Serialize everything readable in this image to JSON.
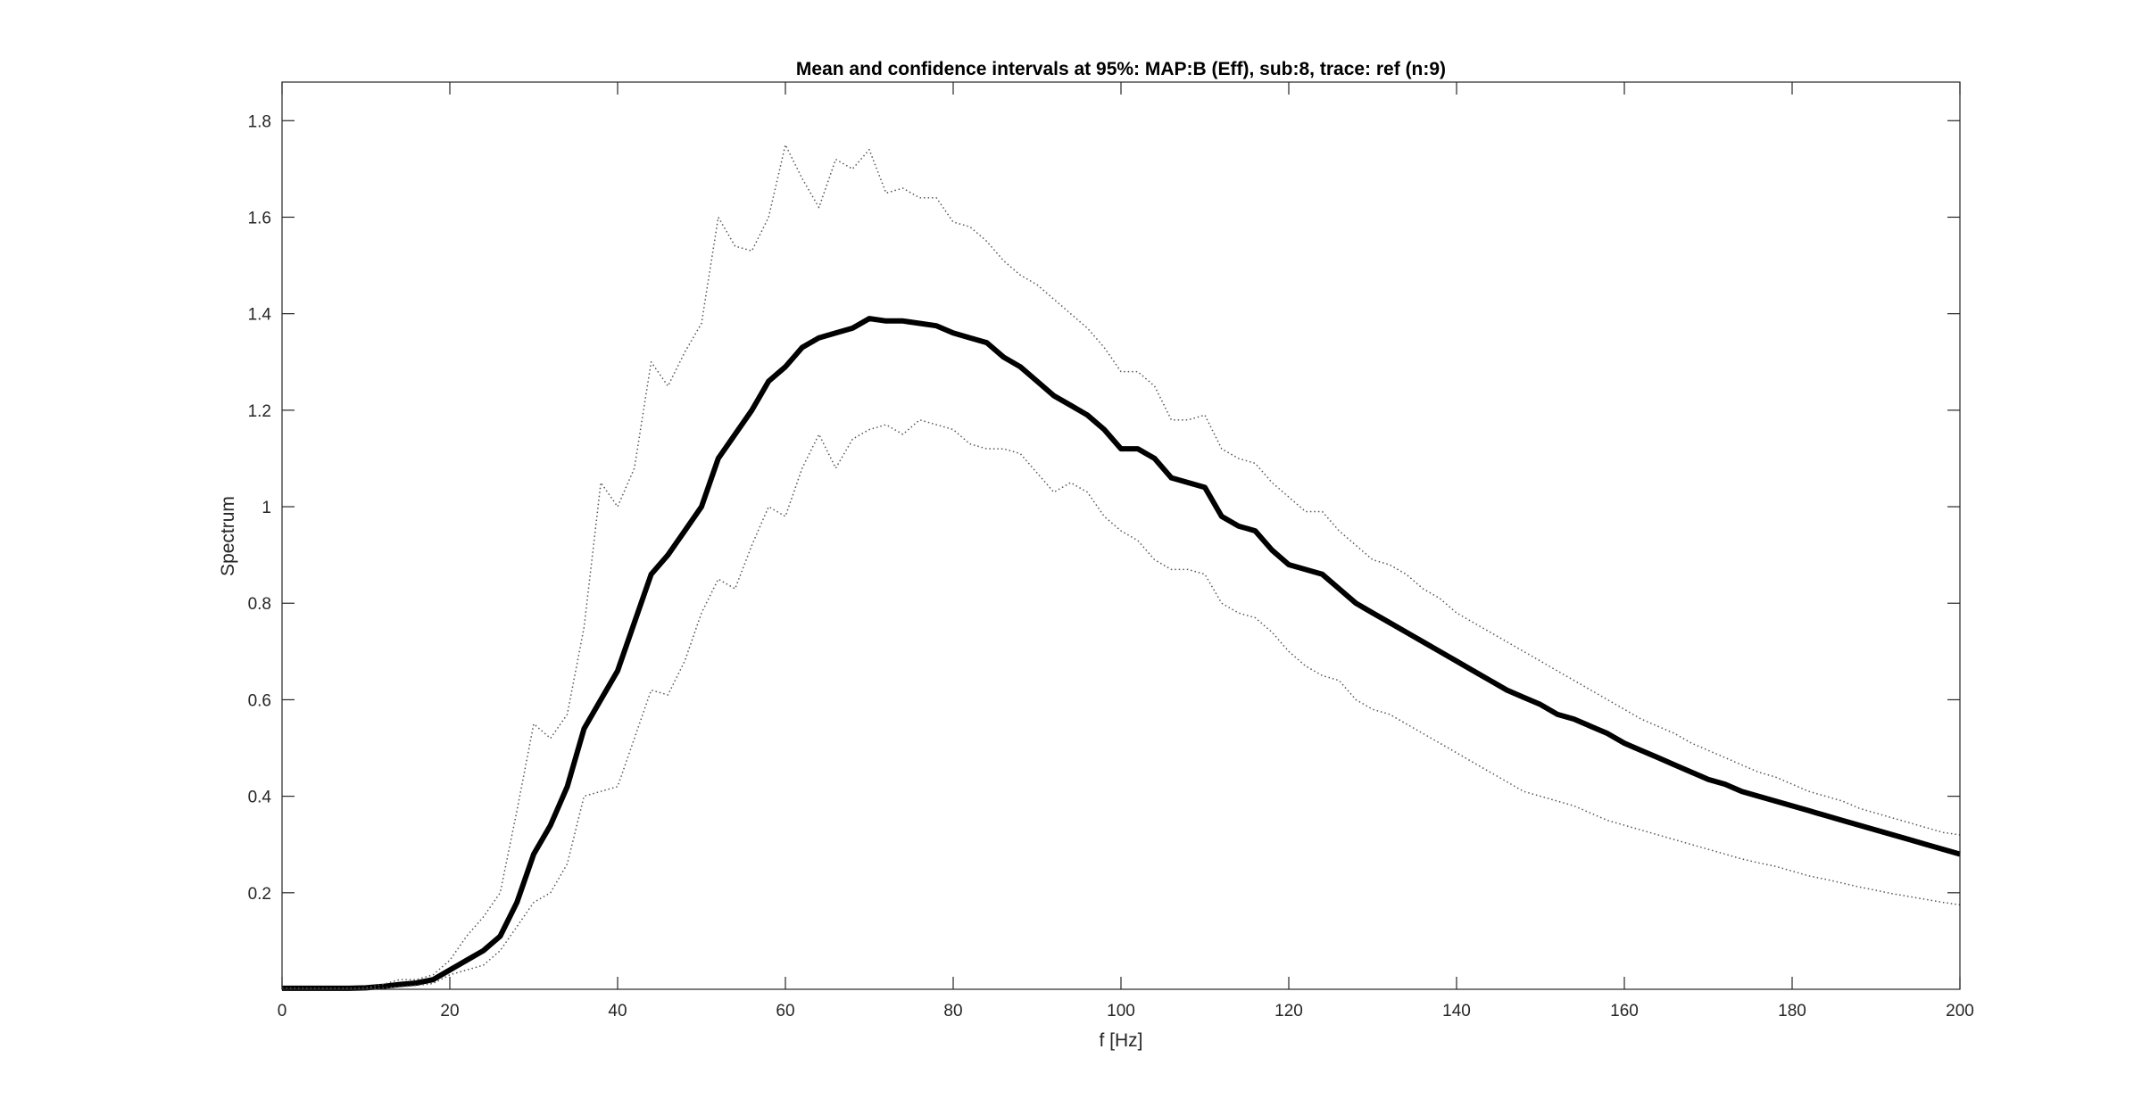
{
  "chart_data": {
    "type": "line",
    "title": "Mean and confidence intervals at 95%: MAP:B (Eff), sub:8, trace: ref (n:9)",
    "xlabel": "f [Hz]",
    "ylabel": "Spectrum",
    "xlim": [
      0,
      200
    ],
    "ylim": [
      0,
      1.88
    ],
    "xticks": [
      0,
      20,
      40,
      60,
      80,
      100,
      120,
      140,
      160,
      180,
      200
    ],
    "xtick_labels": [
      "0",
      "20",
      "40",
      "60",
      "80",
      "100",
      "120",
      "140",
      "160",
      "180",
      "200"
    ],
    "yticks": [
      0.2,
      0.4,
      0.6,
      0.8,
      1.0,
      1.2,
      1.4,
      1.6,
      1.8
    ],
    "ytick_labels": [
      "0.2",
      "0.4",
      "0.6",
      "0.8",
      "1",
      "1.2",
      "1.4",
      "1.6",
      "1.8"
    ],
    "grid": false,
    "legend": "none",
    "x": [
      0,
      2,
      4,
      6,
      8,
      10,
      12,
      14,
      16,
      18,
      20,
      22,
      24,
      26,
      28,
      30,
      32,
      34,
      36,
      38,
      40,
      42,
      44,
      46,
      48,
      50,
      52,
      54,
      56,
      58,
      60,
      62,
      64,
      66,
      68,
      70,
      72,
      74,
      76,
      78,
      80,
      82,
      84,
      86,
      88,
      90,
      92,
      94,
      96,
      98,
      100,
      102,
      104,
      106,
      108,
      110,
      112,
      114,
      116,
      118,
      120,
      122,
      124,
      126,
      128,
      130,
      132,
      134,
      136,
      138,
      140,
      142,
      144,
      146,
      148,
      150,
      152,
      154,
      156,
      158,
      160,
      162,
      164,
      166,
      168,
      170,
      172,
      174,
      176,
      178,
      180,
      182,
      184,
      186,
      188,
      190,
      192,
      194,
      196,
      198,
      200
    ],
    "series": [
      {
        "style": "solid-thick",
        "color": "#000000",
        "values": [
          0.002,
          0.002,
          0.002,
          0.002,
          0.002,
          0.003,
          0.006,
          0.01,
          0.013,
          0.02,
          0.04,
          0.06,
          0.08,
          0.11,
          0.18,
          0.28,
          0.34,
          0.42,
          0.54,
          0.6,
          0.66,
          0.76,
          0.86,
          0.9,
          0.95,
          1.0,
          1.1,
          1.15,
          1.2,
          1.26,
          1.29,
          1.33,
          1.35,
          1.36,
          1.37,
          1.39,
          1.385,
          1.385,
          1.38,
          1.375,
          1.36,
          1.35,
          1.34,
          1.31,
          1.29,
          1.26,
          1.23,
          1.21,
          1.19,
          1.16,
          1.12,
          1.12,
          1.1,
          1.06,
          1.05,
          1.04,
          0.98,
          0.96,
          0.95,
          0.91,
          0.88,
          0.87,
          0.86,
          0.83,
          0.8,
          0.78,
          0.76,
          0.74,
          0.72,
          0.7,
          0.68,
          0.66,
          0.64,
          0.62,
          0.605,
          0.59,
          0.57,
          0.56,
          0.545,
          0.53,
          0.51,
          0.495,
          0.48,
          0.465,
          0.45,
          0.435,
          0.425,
          0.41,
          0.4,
          0.39,
          0.38,
          0.37,
          0.36,
          0.35,
          0.34,
          0.33,
          0.32,
          0.31,
          0.3,
          0.29,
          0.28
        ]
      },
      {
        "style": "dotted",
        "color": "#555555",
        "values": [
          0.002,
          0.002,
          0.002,
          0.002,
          0.002,
          0.003,
          0.01,
          0.02,
          0.02,
          0.03,
          0.06,
          0.11,
          0.15,
          0.2,
          0.37,
          0.55,
          0.52,
          0.57,
          0.75,
          1.05,
          1.0,
          1.08,
          1.3,
          1.25,
          1.32,
          1.38,
          1.6,
          1.54,
          1.53,
          1.6,
          1.75,
          1.68,
          1.62,
          1.72,
          1.7,
          1.74,
          1.65,
          1.66,
          1.64,
          1.64,
          1.59,
          1.58,
          1.55,
          1.51,
          1.48,
          1.46,
          1.43,
          1.4,
          1.37,
          1.33,
          1.28,
          1.28,
          1.25,
          1.18,
          1.18,
          1.19,
          1.12,
          1.1,
          1.09,
          1.05,
          1.02,
          0.99,
          0.99,
          0.95,
          0.92,
          0.89,
          0.88,
          0.86,
          0.83,
          0.81,
          0.78,
          0.76,
          0.74,
          0.72,
          0.7,
          0.68,
          0.66,
          0.64,
          0.62,
          0.6,
          0.58,
          0.56,
          0.545,
          0.53,
          0.51,
          0.495,
          0.48,
          0.465,
          0.45,
          0.44,
          0.425,
          0.41,
          0.4,
          0.39,
          0.375,
          0.365,
          0.355,
          0.345,
          0.335,
          0.325,
          0.32
        ]
      },
      {
        "style": "dotted",
        "color": "#555555",
        "values": [
          0.002,
          0.002,
          0.002,
          0.002,
          0.002,
          0.002,
          0.003,
          0.005,
          0.008,
          0.012,
          0.03,
          0.04,
          0.05,
          0.08,
          0.13,
          0.18,
          0.2,
          0.26,
          0.4,
          0.41,
          0.42,
          0.52,
          0.62,
          0.61,
          0.68,
          0.78,
          0.85,
          0.83,
          0.92,
          1.0,
          0.98,
          1.08,
          1.15,
          1.08,
          1.14,
          1.16,
          1.17,
          1.15,
          1.18,
          1.17,
          1.16,
          1.13,
          1.12,
          1.12,
          1.11,
          1.07,
          1.03,
          1.05,
          1.03,
          0.98,
          0.95,
          0.93,
          0.89,
          0.87,
          0.87,
          0.86,
          0.8,
          0.78,
          0.77,
          0.74,
          0.7,
          0.67,
          0.65,
          0.64,
          0.6,
          0.58,
          0.57,
          0.55,
          0.53,
          0.51,
          0.49,
          0.47,
          0.45,
          0.43,
          0.41,
          0.4,
          0.39,
          0.38,
          0.365,
          0.35,
          0.34,
          0.33,
          0.32,
          0.31,
          0.3,
          0.29,
          0.28,
          0.27,
          0.262,
          0.255,
          0.245,
          0.235,
          0.228,
          0.22,
          0.212,
          0.205,
          0.198,
          0.192,
          0.186,
          0.18,
          0.175
        ]
      }
    ]
  }
}
